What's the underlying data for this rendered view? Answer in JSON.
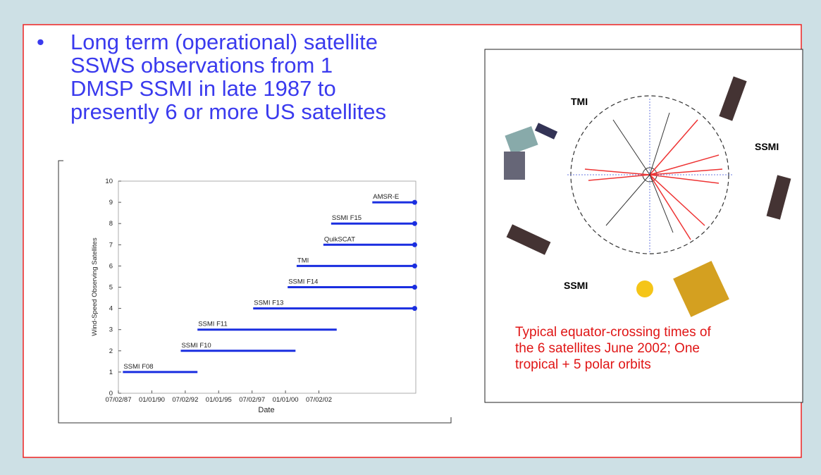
{
  "slide": {
    "bullet": "•",
    "bullet_lines": [
      "Long term (operational) satellite",
      "SSWS observations from 1",
      "DMSP SSMI in late 1987 to",
      "presently 6 or more US satellites"
    ]
  },
  "figure": {
    "labels": [
      "TMI",
      "SSMI",
      "SSMI"
    ],
    "caption_lines": [
      "Typical equator-crossing times of",
      "the 6 satellites June 2002; One",
      "tropical + 5 polar orbits"
    ]
  },
  "chart_data": {
    "type": "timeline",
    "ylabel": "Wind-Speed Observing Satellites",
    "xlabel": "Date",
    "color": "#1a2ee0",
    "xlim": [
      "1987-07-02",
      "2009-10-01"
    ],
    "xticks": [
      {
        "value": "1987-07-02",
        "label": "07/02/87"
      },
      {
        "value": "1990-01-01",
        "label": "01/01/90"
      },
      {
        "value": "1992-07-02",
        "label": "07/02/92"
      },
      {
        "value": "1995-01-01",
        "label": "01/01/95"
      },
      {
        "value": "1997-07-02",
        "label": "07/02/97"
      },
      {
        "value": "2000-01-01",
        "label": "01/01/00"
      },
      {
        "value": "2002-07-02",
        "label": "07/02/02"
      }
    ],
    "ylim": [
      0,
      10
    ],
    "yticks": [
      0,
      1,
      2,
      3,
      4,
      5,
      6,
      7,
      8,
      9,
      10
    ],
    "bars": [
      {
        "label": "SSMI F08",
        "level": 1,
        "start": "1987-11-01",
        "end": "1993-06-01",
        "ongoing": false
      },
      {
        "label": "SSMI F10",
        "level": 2,
        "start": "1992-03-01",
        "end": "2000-10-01",
        "ongoing": false
      },
      {
        "label": "SSMI F11",
        "level": 3,
        "start": "1993-06-01",
        "end": "2003-11-01",
        "ongoing": false
      },
      {
        "label": "SSMI F13",
        "level": 4,
        "start": "1997-08-01",
        "end": "2009-09-01",
        "ongoing": true
      },
      {
        "label": "SSMI F14",
        "level": 5,
        "start": "2000-03-01",
        "end": "2009-09-01",
        "ongoing": true
      },
      {
        "label": "TMI",
        "level": 6,
        "start": "2000-11-01",
        "end": "2009-09-01",
        "ongoing": true
      },
      {
        "label": "QuikSCAT",
        "level": 7,
        "start": "2002-11-01",
        "end": "2009-09-01",
        "ongoing": true
      },
      {
        "label": "SSMI F15",
        "level": 8,
        "start": "2003-06-01",
        "end": "2009-09-01",
        "ongoing": true
      },
      {
        "label": "AMSR-E",
        "level": 9,
        "start": "2006-07-01",
        "end": "2009-09-01",
        "ongoing": true
      }
    ]
  }
}
